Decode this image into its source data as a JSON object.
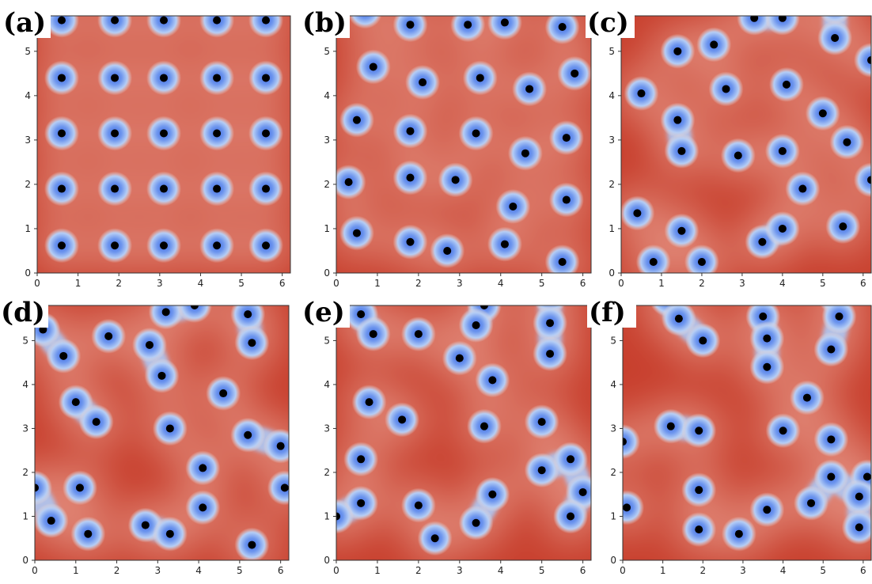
{
  "colors": {
    "hot": "#c8402e",
    "mid": "#e2897a",
    "cool_ring": "#aec7f3",
    "cool_core": "#4a78e6",
    "dot": "#000000"
  },
  "chart_data": [
    {
      "type": "scatter",
      "panel_label": "(a)",
      "xlim": [
        0,
        6.2
      ],
      "ylim": [
        0,
        5.8
      ],
      "x_ticks": [
        0,
        1,
        2,
        3,
        4,
        5,
        6
      ],
      "y_ticks": [
        0,
        1,
        2,
        3,
        4,
        5
      ],
      "points": [
        [
          0.6,
          5.7
        ],
        [
          1.9,
          5.7
        ],
        [
          3.1,
          5.7
        ],
        [
          4.4,
          5.7
        ],
        [
          5.6,
          5.7
        ],
        [
          0.6,
          4.4
        ],
        [
          1.9,
          4.4
        ],
        [
          3.1,
          4.4
        ],
        [
          4.4,
          4.4
        ],
        [
          5.6,
          4.4
        ],
        [
          0.6,
          3.15
        ],
        [
          1.9,
          3.15
        ],
        [
          3.1,
          3.15
        ],
        [
          4.4,
          3.15
        ],
        [
          5.6,
          3.15
        ],
        [
          0.6,
          1.9
        ],
        [
          1.9,
          1.9
        ],
        [
          3.1,
          1.9
        ],
        [
          4.4,
          1.9
        ],
        [
          5.6,
          1.9
        ],
        [
          0.6,
          0.62
        ],
        [
          1.9,
          0.62
        ],
        [
          3.1,
          0.62
        ],
        [
          4.4,
          0.62
        ],
        [
          5.6,
          0.62
        ]
      ]
    },
    {
      "type": "scatter",
      "panel_label": "(b)",
      "xlim": [
        0,
        6.2
      ],
      "ylim": [
        0,
        5.8
      ],
      "x_ticks": [
        0,
        1,
        2,
        3,
        4,
        5,
        6
      ],
      "y_ticks": [
        0,
        1,
        2,
        3,
        4,
        5
      ],
      "points": [
        [
          0.7,
          5.9
        ],
        [
          1.8,
          5.6
        ],
        [
          3.2,
          5.6
        ],
        [
          4.1,
          5.65
        ],
        [
          5.5,
          5.55
        ],
        [
          5.8,
          4.5
        ],
        [
          0.9,
          4.65
        ],
        [
          2.1,
          4.3
        ],
        [
          3.5,
          4.4
        ],
        [
          4.7,
          4.15
        ],
        [
          0.5,
          3.45
        ],
        [
          1.8,
          3.2
        ],
        [
          3.4,
          3.15
        ],
        [
          5.6,
          3.05
        ],
        [
          4.6,
          2.7
        ],
        [
          0.3,
          2.05
        ],
        [
          1.8,
          2.15
        ],
        [
          2.9,
          2.1
        ],
        [
          4.3,
          1.5
        ],
        [
          5.6,
          1.65
        ],
        [
          0.5,
          0.9
        ],
        [
          1.8,
          0.7
        ],
        [
          2.7,
          0.5
        ],
        [
          4.1,
          0.65
        ],
        [
          5.5,
          0.25
        ]
      ]
    },
    {
      "type": "scatter",
      "panel_label": "(c)",
      "xlim": [
        0,
        6.2
      ],
      "ylim": [
        0,
        5.8
      ],
      "x_ticks": [
        0,
        1,
        2,
        3,
        4,
        5,
        6
      ],
      "y_ticks": [
        0,
        1,
        2,
        3,
        4,
        5
      ],
      "points": [
        [
          3.3,
          5.75
        ],
        [
          4.0,
          5.75
        ],
        [
          5.3,
          6.0
        ],
        [
          5.3,
          5.3
        ],
        [
          6.2,
          4.8
        ],
        [
          1.4,
          5.0
        ],
        [
          2.3,
          5.15
        ],
        [
          0.5,
          4.05
        ],
        [
          2.6,
          4.15
        ],
        [
          4.1,
          4.25
        ],
        [
          1.4,
          3.45
        ],
        [
          1.5,
          2.75
        ],
        [
          5.0,
          3.6
        ],
        [
          5.6,
          2.95
        ],
        [
          2.9,
          2.65
        ],
        [
          4.0,
          2.75
        ],
        [
          6.2,
          2.1
        ],
        [
          4.5,
          1.9
        ],
        [
          0.4,
          1.35
        ],
        [
          1.5,
          0.95
        ],
        [
          3.5,
          0.7
        ],
        [
          4.0,
          1.0
        ],
        [
          5.5,
          1.05
        ],
        [
          0.8,
          0.25
        ],
        [
          2.0,
          0.25
        ]
      ]
    },
    {
      "type": "scatter",
      "panel_label": "(d)",
      "xlim": [
        0,
        6.2
      ],
      "ylim": [
        0,
        5.8
      ],
      "x_ticks": [
        0,
        1,
        2,
        3,
        4,
        5,
        6
      ],
      "y_ticks": [
        0,
        1,
        2,
        3,
        4,
        5
      ],
      "points": [
        [
          0.2,
          5.25
        ],
        [
          0.7,
          4.65
        ],
        [
          1.8,
          5.1
        ],
        [
          2.8,
          4.9
        ],
        [
          3.2,
          5.65
        ],
        [
          3.9,
          5.8
        ],
        [
          5.2,
          5.6
        ],
        [
          5.3,
          4.95
        ],
        [
          3.1,
          4.2
        ],
        [
          1.0,
          3.6
        ],
        [
          1.5,
          3.15
        ],
        [
          4.6,
          3.8
        ],
        [
          3.3,
          3.0
        ],
        [
          5.2,
          2.85
        ],
        [
          6.0,
          2.6
        ],
        [
          0.0,
          1.65
        ],
        [
          1.1,
          1.65
        ],
        [
          4.1,
          2.1
        ],
        [
          6.1,
          1.65
        ],
        [
          4.1,
          1.2
        ],
        [
          0.4,
          0.9
        ],
        [
          1.3,
          0.6
        ],
        [
          2.7,
          0.8
        ],
        [
          3.3,
          0.6
        ],
        [
          5.3,
          0.35
        ]
      ]
    },
    {
      "type": "scatter",
      "panel_label": "(e)",
      "xlim": [
        0,
        6.2
      ],
      "ylim": [
        0,
        5.8
      ],
      "x_ticks": [
        0,
        1,
        2,
        3,
        4,
        5,
        6
      ],
      "y_ticks": [
        0,
        1,
        2,
        3,
        4,
        5
      ],
      "points": [
        [
          0.6,
          5.6
        ],
        [
          0.9,
          5.15
        ],
        [
          2.0,
          5.15
        ],
        [
          3.6,
          5.8
        ],
        [
          3.4,
          5.35
        ],
        [
          5.2,
          6.0
        ],
        [
          5.2,
          5.4
        ],
        [
          5.2,
          4.7
        ],
        [
          3.0,
          4.6
        ],
        [
          3.8,
          4.1
        ],
        [
          0.8,
          3.6
        ],
        [
          1.6,
          3.2
        ],
        [
          3.6,
          3.05
        ],
        [
          5.0,
          3.15
        ],
        [
          0.6,
          2.3
        ],
        [
          5.0,
          2.05
        ],
        [
          5.7,
          2.3
        ],
        [
          6.0,
          1.55
        ],
        [
          2.0,
          1.25
        ],
        [
          3.8,
          1.5
        ],
        [
          0.6,
          1.3
        ],
        [
          5.7,
          1.0
        ],
        [
          0.0,
          1.0
        ],
        [
          2.4,
          0.5
        ],
        [
          3.4,
          0.85
        ]
      ]
    },
    {
      "type": "scatter",
      "panel_label": "(f)",
      "xlim": [
        0,
        6.2
      ],
      "ylim": [
        0,
        5.8
      ],
      "x_ticks": [
        0,
        1,
        2,
        3,
        4,
        5,
        6
      ],
      "y_ticks": [
        0,
        1,
        2,
        3,
        4,
        5
      ],
      "points": [
        [
          1.1,
          5.95
        ],
        [
          1.4,
          5.5
        ],
        [
          2.0,
          5.0
        ],
        [
          3.5,
          5.55
        ],
        [
          3.6,
          5.05
        ],
        [
          3.6,
          4.4
        ],
        [
          5.3,
          6.0
        ],
        [
          5.4,
          5.55
        ],
        [
          5.2,
          4.8
        ],
        [
          4.6,
          3.7
        ],
        [
          1.2,
          3.05
        ],
        [
          1.9,
          2.95
        ],
        [
          4.0,
          2.95
        ],
        [
          5.2,
          2.75
        ],
        [
          0.0,
          2.7
        ],
        [
          5.2,
          1.9
        ],
        [
          6.1,
          1.9
        ],
        [
          1.9,
          1.6
        ],
        [
          5.9,
          1.45
        ],
        [
          0.1,
          1.2
        ],
        [
          3.6,
          1.15
        ],
        [
          4.7,
          1.3
        ],
        [
          1.9,
          0.7
        ],
        [
          2.9,
          0.6
        ],
        [
          5.9,
          0.75
        ]
      ]
    }
  ]
}
